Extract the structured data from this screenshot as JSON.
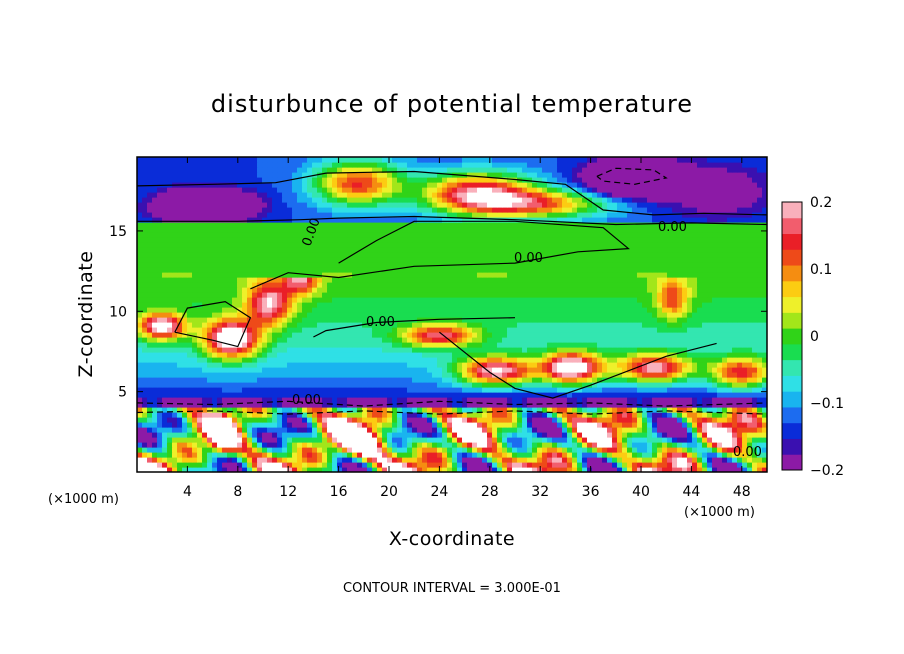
{
  "chart_data": {
    "type": "heatmap",
    "title": "disturbunce of potential temperature",
    "xlabel": "X-coordinate",
    "ylabel": "Z-coordinate",
    "x_unit": "(×1000 m)",
    "x_ticks": [
      "4",
      "8",
      "12",
      "16",
      "20",
      "24",
      "28",
      "32",
      "36",
      "40",
      "44",
      "48"
    ],
    "y_ticks": [
      "5",
      "10",
      "15"
    ],
    "xlim": [
      0,
      50
    ],
    "ylim": [
      0,
      19.6
    ],
    "colorbar": {
      "range": [
        -0.2,
        0.2
      ],
      "ticks": [
        "0.2",
        "0.1",
        "0",
        "−0.1",
        "−0.2"
      ],
      "colors": [
        "#8c1aa6",
        "#3a10b0",
        "#0a2cd8",
        "#1c6cf0",
        "#19b4ef",
        "#2fe0e6",
        "#33e6b0",
        "#19dd50",
        "#30d318",
        "#a2e61a",
        "#eef02a",
        "#fccc12",
        "#f58d11",
        "#ee4a19",
        "#ea1f27",
        "#f25d6d",
        "#f9b0bb"
      ]
    },
    "contour_labels": [
      "0.00",
      "0.00",
      "0.00",
      "0.00",
      "0.00",
      "0.00"
    ],
    "contour_interval_label": "CONTOUR INTERVAL = 3.000E-01"
  }
}
